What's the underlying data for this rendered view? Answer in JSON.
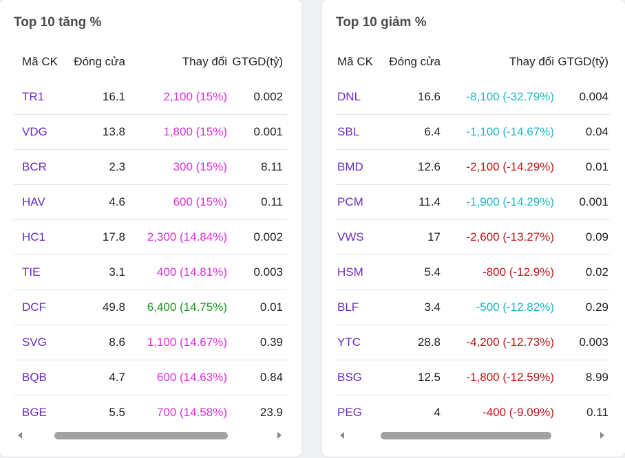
{
  "gainers": {
    "title": "Top 10 tăng %",
    "headers": [
      "Mã CK",
      "Đóng cửa",
      "Thay đổi",
      "GTGD(tỷ)"
    ],
    "rows": [
      {
        "symbol": "TR1",
        "close": "16.1",
        "change": "2,100 (15%)",
        "value": "0.002",
        "tone": "up"
      },
      {
        "symbol": "VDG",
        "close": "13.8",
        "change": "1,800 (15%)",
        "value": "0.001",
        "tone": "up"
      },
      {
        "symbol": "BCR",
        "close": "2.3",
        "change": "300 (15%)",
        "value": "8.11",
        "tone": "up"
      },
      {
        "symbol": "HAV",
        "close": "4.6",
        "change": "600 (15%)",
        "value": "0.11",
        "tone": "up"
      },
      {
        "symbol": "HC1",
        "close": "17.8",
        "change": "2,300 (14.84%)",
        "value": "0.002",
        "tone": "up"
      },
      {
        "symbol": "TIE",
        "close": "3.1",
        "change": "400 (14.81%)",
        "value": "0.003",
        "tone": "up"
      },
      {
        "symbol": "DCF",
        "close": "49.8",
        "change": "6,400 (14.75%)",
        "value": "0.01",
        "tone": "ceil-green"
      },
      {
        "symbol": "SVG",
        "close": "8.6",
        "change": "1,100 (14.67%)",
        "value": "0.39",
        "tone": "up"
      },
      {
        "symbol": "BQB",
        "close": "4.7",
        "change": "600 (14.63%)",
        "value": "0.84",
        "tone": "up"
      },
      {
        "symbol": "BGE",
        "close": "5.5",
        "change": "700 (14.58%)",
        "value": "23.9",
        "tone": "up"
      }
    ]
  },
  "losers": {
    "title": "Top 10 giảm %",
    "headers": [
      "Mã CK",
      "Đóng cửa",
      "Thay đổi",
      "GTGD(tỷ)"
    ],
    "rows": [
      {
        "symbol": "DNL",
        "close": "16.6",
        "change": "-8,100 (-32.79%)",
        "value": "0.004",
        "tone": "down-cyan"
      },
      {
        "symbol": "SBL",
        "close": "6.4",
        "change": "-1,100 (-14.67%)",
        "value": "0.04",
        "tone": "down-cyan"
      },
      {
        "symbol": "BMD",
        "close": "12.6",
        "change": "-2,100 (-14.29%)",
        "value": "0.01",
        "tone": "down-red"
      },
      {
        "symbol": "PCM",
        "close": "11.4",
        "change": "-1,900 (-14.29%)",
        "value": "0.001",
        "tone": "down-cyan"
      },
      {
        "symbol": "VWS",
        "close": "17",
        "change": "-2,600 (-13.27%)",
        "value": "0.09",
        "tone": "down-red"
      },
      {
        "symbol": "HSM",
        "close": "5.4",
        "change": "-800 (-12.9%)",
        "value": "0.02",
        "tone": "down-red"
      },
      {
        "symbol": "BLF",
        "close": "3.4",
        "change": "-500 (-12.82%)",
        "value": "0.29",
        "tone": "down-cyan"
      },
      {
        "symbol": "YTC",
        "close": "28.8",
        "change": "-4,200 (-12.73%)",
        "value": "0.003",
        "tone": "down-red"
      },
      {
        "symbol": "BSG",
        "close": "12.5",
        "change": "-1,800 (-12.59%)",
        "value": "8.99",
        "tone": "down-red"
      },
      {
        "symbol": "PEG",
        "close": "4",
        "change": "-400 (-9.09%)",
        "value": "0.11",
        "tone": "down-red"
      }
    ]
  },
  "colors": {
    "symbol": "#6a2bbf",
    "up": "#e02ee0",
    "ceil_green": "#1a9a1a",
    "down_red": "#c01616",
    "down_cyan": "#19b8c4"
  },
  "icons": {
    "scroll_left": "scroll-left-arrow-icon",
    "scroll_right": "scroll-right-arrow-icon"
  }
}
